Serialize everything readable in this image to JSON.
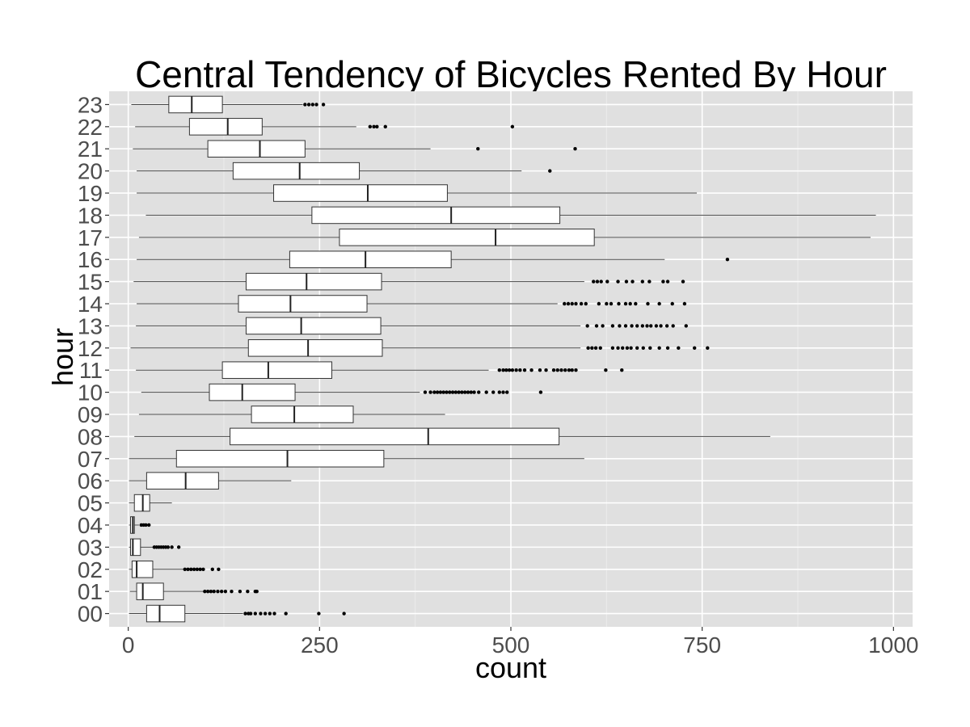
{
  "chart_data": {
    "type": "boxplot",
    "title": "Central Tendency of Bicycles Rented By Hour",
    "xlabel": "count",
    "ylabel": "hour",
    "xlim": [
      -25,
      1025
    ],
    "x_ticks": [
      0,
      250,
      500,
      750,
      1000
    ],
    "categories": [
      "00",
      "01",
      "02",
      "03",
      "04",
      "05",
      "06",
      "07",
      "08",
      "09",
      "10",
      "11",
      "12",
      "13",
      "14",
      "15",
      "16",
      "17",
      "18",
      "19",
      "20",
      "21",
      "22",
      "23"
    ],
    "grid": true,
    "boxes": [
      {
        "hour": "00",
        "whisker_low": 1,
        "q1": 24,
        "median": 41,
        "q3": 74,
        "whisker_high": 150,
        "outliers": [
          153,
          157,
          160,
          166,
          173,
          179,
          185,
          191,
          206,
          249,
          282
        ]
      },
      {
        "hour": "01",
        "whisker_low": 2,
        "q1": 11,
        "median": 19,
        "q3": 46,
        "whisker_high": 98,
        "outliers": [
          100,
          104,
          108,
          112,
          117,
          122,
          127,
          135,
          146,
          156,
          166,
          168
        ]
      },
      {
        "hour": "02",
        "whisker_low": 1,
        "q1": 5,
        "median": 11,
        "q3": 32,
        "whisker_high": 72,
        "outliers": [
          74,
          78,
          82,
          86,
          90,
          94,
          98,
          110,
          118
        ]
      },
      {
        "hour": "03",
        "whisker_low": 1,
        "q1": 3,
        "median": 6,
        "q3": 16,
        "whisker_high": 32,
        "outliers": [
          34,
          37,
          40,
          43,
          46,
          49,
          52,
          57,
          66
        ]
      },
      {
        "hour": "04",
        "whisker_low": 1,
        "q1": 3,
        "median": 6,
        "q3": 8,
        "whisker_high": 14,
        "outliers": [
          17,
          20,
          23,
          27
        ]
      },
      {
        "hour": "05",
        "whisker_low": 1,
        "q1": 8,
        "median": 19,
        "q3": 28,
        "whisker_high": 57,
        "outliers": []
      },
      {
        "hour": "06",
        "whisker_low": 1,
        "q1": 24,
        "median": 75,
        "q3": 118,
        "whisker_high": 213,
        "outliers": []
      },
      {
        "hour": "07",
        "whisker_low": 1,
        "q1": 63,
        "median": 208,
        "q3": 334,
        "whisker_high": 596,
        "outliers": []
      },
      {
        "hour": "08",
        "whisker_low": 8,
        "q1": 133,
        "median": 392,
        "q3": 563,
        "whisker_high": 839,
        "outliers": []
      },
      {
        "hour": "09",
        "whisker_low": 14,
        "q1": 161,
        "median": 217,
        "q3": 294,
        "whisker_high": 414,
        "outliers": []
      },
      {
        "hour": "10",
        "whisker_low": 17,
        "q1": 106,
        "median": 149,
        "q3": 218,
        "whisker_high": 381,
        "outliers": [
          388,
          395,
          400,
          404,
          408,
          412,
          416,
          420,
          424,
          428,
          432,
          436,
          440,
          444,
          448,
          452,
          458,
          468,
          477,
          485,
          490,
          495,
          539
        ]
      },
      {
        "hour": "11",
        "whisker_low": 10,
        "q1": 123,
        "median": 183,
        "q3": 266,
        "whisker_high": 471,
        "outliers": [
          485,
          490,
          494,
          498,
          502,
          507,
          512,
          518,
          527,
          538,
          546,
          556,
          561,
          566,
          571,
          576,
          580,
          585,
          624,
          645
        ]
      },
      {
        "hour": "12",
        "whisker_low": 3,
        "q1": 157,
        "median": 235,
        "q3": 332,
        "whisker_high": 591,
        "outliers": [
          601,
          606,
          611,
          617,
          633,
          640,
          646,
          652,
          657,
          665,
          673,
          682,
          694,
          705,
          719,
          740,
          757
        ]
      },
      {
        "hour": "13",
        "whisker_low": 10,
        "q1": 154,
        "median": 226,
        "q3": 330,
        "whisker_high": 591,
        "outliers": [
          600,
          612,
          620,
          633,
          642,
          650,
          658,
          665,
          672,
          678,
          683,
          690,
          696,
          704,
          712,
          729
        ]
      },
      {
        "hour": "14",
        "whisker_low": 11,
        "q1": 144,
        "median": 212,
        "q3": 312,
        "whisker_high": 561,
        "outliers": [
          570,
          575,
          580,
          585,
          592,
          598,
          615,
          625,
          631,
          641,
          650,
          656,
          663,
          679,
          694,
          711,
          727
        ]
      },
      {
        "hour": "15",
        "whisker_low": 7,
        "q1": 154,
        "median": 233,
        "q3": 331,
        "whisker_high": 596,
        "outliers": [
          608,
          613,
          618,
          626,
          640,
          651,
          659,
          672,
          681,
          699,
          705,
          725
        ]
      },
      {
        "hour": "16",
        "whisker_low": 11,
        "q1": 211,
        "median": 310,
        "q3": 422,
        "whisker_high": 701,
        "outliers": [
          783
        ]
      },
      {
        "hour": "17",
        "whisker_low": 14,
        "q1": 276,
        "median": 480,
        "q3": 609,
        "whisker_high": 970,
        "outliers": []
      },
      {
        "hour": "18",
        "whisker_low": 23,
        "q1": 240,
        "median": 422,
        "q3": 564,
        "whisker_high": 977,
        "outliers": []
      },
      {
        "hour": "19",
        "whisker_low": 11,
        "q1": 190,
        "median": 313,
        "q3": 417,
        "whisker_high": 743,
        "outliers": []
      },
      {
        "hour": "20",
        "whisker_low": 11,
        "q1": 137,
        "median": 224,
        "q3": 302,
        "whisker_high": 514,
        "outliers": [
          551
        ]
      },
      {
        "hour": "21",
        "whisker_low": 6,
        "q1": 104,
        "median": 172,
        "q3": 231,
        "whisker_high": 395,
        "outliers": [
          457,
          584
        ]
      },
      {
        "hour": "22",
        "whisker_low": 9,
        "q1": 80,
        "median": 130,
        "q3": 175,
        "whisker_high": 298,
        "outliers": [
          316,
          321,
          325,
          336,
          502
        ]
      },
      {
        "hour": "23",
        "whisker_low": 4,
        "q1": 53,
        "median": 83,
        "q3": 123,
        "whisker_high": 228,
        "outliers": [
          231,
          236,
          241,
          246,
          255
        ]
      }
    ]
  },
  "colors": {
    "panel_bg": "#e0e0e0",
    "grid_major": "#ffffff",
    "grid_minor": "#ececec",
    "box_fill": "#ffffff",
    "box_stroke": "#333333",
    "whisker": "#444444",
    "outlier": "#000000",
    "tick_label": "#4d4d4d"
  }
}
